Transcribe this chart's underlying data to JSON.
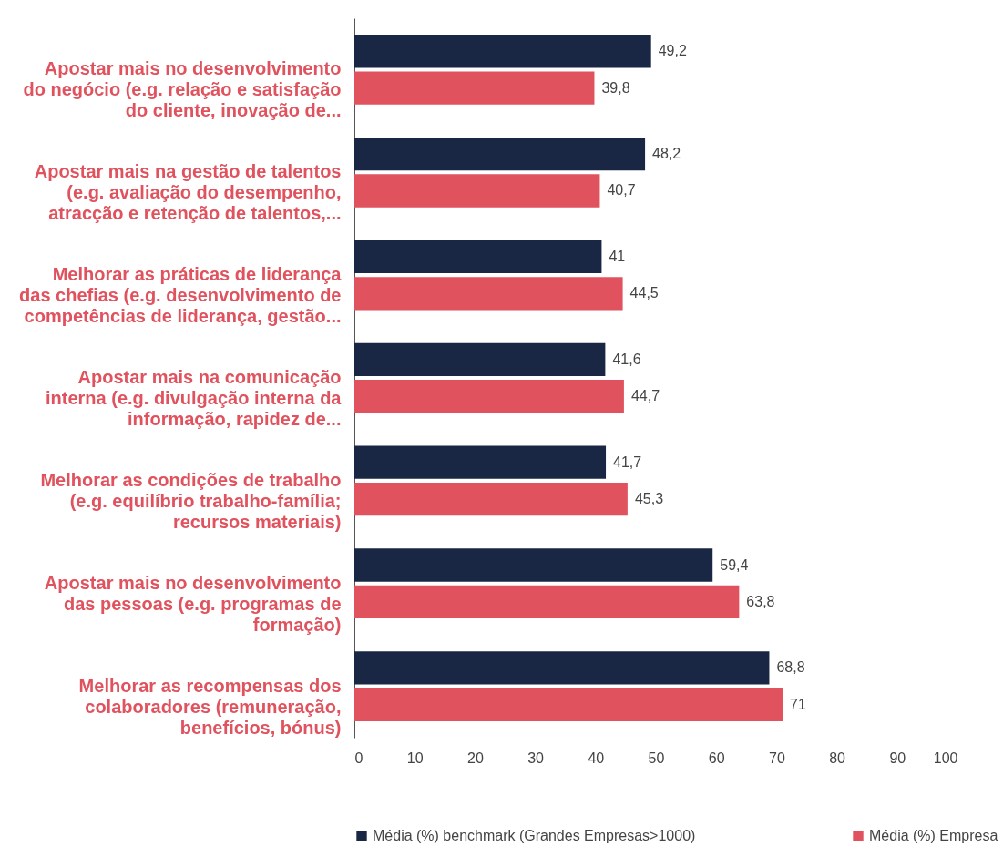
{
  "chart_data": {
    "type": "bar",
    "orientation": "horizontal",
    "categories": [
      "Apostar mais no desenvolvimento\ndo negócio (e.g. relação e satisfação\ndo cliente, inovação de...",
      "Apostar mais na gestão de talentos\n(e.g. avaliação do desempenho,\natracção e retenção de talentos,...",
      "Melhorar as práticas de liderança\ndas chefias (e.g. desenvolvimento de\ncompetências de liderança, gestão...",
      "Apostar mais na comunicação\ninterna (e.g. divulgação interna da\ninformação, rapidez de...",
      "Melhorar as condições de trabalho\n(e.g. equilíbrio trabalho-família;\nrecursos materiais)",
      "Apostar mais no desenvolvimento\ndas pessoas (e.g. programas de\nformação)",
      "Melhorar as recompensas dos\ncolaboradores (remuneração,\nbenefícios, bónus)"
    ],
    "series": [
      {
        "name": "Média (%) benchmark (Grandes Empresas>1000)",
        "color": "#1a2744",
        "values": [
          49.2,
          48.2,
          41,
          41.6,
          41.7,
          59.4,
          68.8
        ],
        "value_labels": [
          "49,2",
          "48,2",
          "41",
          "41,6",
          "41,7",
          "59,4",
          "68,8"
        ]
      },
      {
        "name": "Média (%) Empresa",
        "color": "#e0525d",
        "values": [
          39.8,
          40.7,
          44.5,
          44.7,
          45.3,
          63.8,
          71
        ],
        "value_labels": [
          "39,8",
          "40,7",
          "44,5",
          "44,7",
          "45,3",
          "63,8",
          "71"
        ]
      }
    ],
    "xlim": [
      0,
      100
    ],
    "xticks": [
      0,
      10,
      20,
      30,
      40,
      50,
      60,
      70,
      80,
      90,
      100
    ],
    "grid": false,
    "legend": "bottom"
  }
}
